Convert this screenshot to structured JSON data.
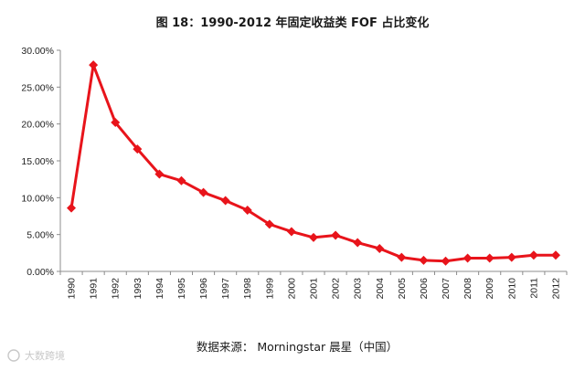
{
  "chart_data": {
    "type": "line",
    "title": "图 18：1990-2012 年固定收益类 FOF 占比变化",
    "xlabel": "",
    "ylabel": "",
    "categories": [
      "1990",
      "1991",
      "1992",
      "1993",
      "1994",
      "1995",
      "1996",
      "1997",
      "1998",
      "1999",
      "2000",
      "2001",
      "2002",
      "2003",
      "2004",
      "2005",
      "2006",
      "2007",
      "2008",
      "2009",
      "2010",
      "2011",
      "2012"
    ],
    "series": [
      {
        "values": [
          8.6,
          28.0,
          20.2,
          16.6,
          13.2,
          12.3,
          10.7,
          9.6,
          8.3,
          6.4,
          5.4,
          4.6,
          4.9,
          3.9,
          3.1,
          1.9,
          1.5,
          1.4,
          1.8,
          1.8,
          1.9,
          2.2,
          2.2
        ]
      }
    ],
    "ylim": [
      0,
      30
    ],
    "yticks": [
      "0.00%",
      "5.00%",
      "10.00%",
      "15.00%",
      "20.00%",
      "25.00%",
      "30.00%"
    ],
    "grid": false,
    "legend": "none",
    "line_color": "#e8141b"
  },
  "source": "数据来源： Morningstar 晨星（中国）",
  "watermark": "大数跨境"
}
